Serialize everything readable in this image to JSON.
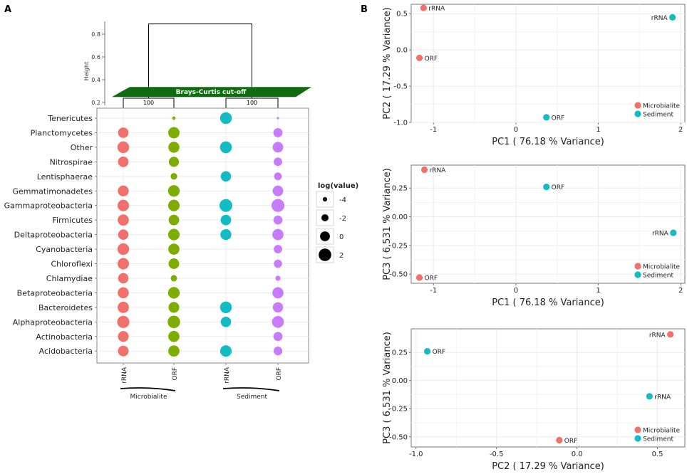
{
  "panel_labels": {
    "a": "A",
    "b": "B"
  },
  "colors": {
    "microbialite": "#F0716C",
    "rRNA_sample": "#F0716C",
    "orf_microbialite": "#7CAE00",
    "rrna_sediment": "#13BBC4",
    "orf_sediment": "#C77CFF",
    "pca_microbialite": "#F0716C",
    "pca_sediment": "#13BBC4",
    "cutoff_band": "#0E6B0E",
    "grid": "#ebebeb"
  },
  "chart_data": [
    {
      "type": "scatter",
      "subtype": "bubble-dotplot-with-dendrogram",
      "title": "",
      "dendrogram": {
        "ylabel": "Height",
        "ticks": [
          0.2,
          0.4,
          0.6,
          0.8
        ],
        "ylim": [
          0.2,
          0.9
        ],
        "merge_height": 0.89,
        "cluster_heights": [
          0.2,
          0.2
        ],
        "cluster_labels": [
          "100",
          "100"
        ],
        "cutoff_label": "Brays-Curtis cut-off",
        "cutoff_height": 0.33
      },
      "columns": [
        "rRNA",
        "ORF",
        "rRNA",
        "ORF"
      ],
      "column_groups": [
        "Microbialite",
        "Sediment"
      ],
      "categories": [
        "Tenericutes",
        "Planctomycetes",
        "Other",
        "Nitrospirae",
        "Lentisphaerae",
        "Gemmatimonadetes",
        "Gammaproteobacteria",
        "Firmicutes",
        "Deltaproteobacteria",
        "Cyanobacteria",
        "Chloroflexi",
        "Chlamydiae",
        "Betaproteobacteria",
        "Bacteroidetes",
        "Alphaproteobacteria",
        "Actinobacteria",
        "Acidobacteria"
      ],
      "series": [
        {
          "name": "Microbialite rRNA",
          "values": [
            null,
            0.5,
            1.4,
            0.5,
            null,
            0.8,
            1.2,
            1.0,
            0.4,
            1.3,
            1.2,
            0.4,
            0.9,
            1.1,
            1.8,
            0.7,
            0.6
          ]
        },
        {
          "name": "Microbialite ORF",
          "values": [
            -4.8,
            1.1,
            0.9,
            0.2,
            -2.4,
            1.3,
            1.2,
            0.5,
            1.2,
            1.0,
            0.6,
            -2.6,
            1.3,
            0.7,
            2.0,
            1.0,
            1.0
          ]
        },
        {
          "name": "Sediment rRNA",
          "values": [
            1.4,
            null,
            1.5,
            null,
            0.4,
            null,
            2.2,
            0.5,
            0.8,
            null,
            null,
            null,
            null,
            1.4,
            0.4,
            null,
            1.2
          ]
        },
        {
          "name": "Sediment ORF",
          "values": [
            -5.5,
            -0.5,
            0.6,
            -1.0,
            -1.5,
            0.6,
            2.3,
            -0.6,
            1.0,
            -1.0,
            -1.2,
            -3.5,
            1.0,
            0.4,
            1.5,
            -0.5,
            -0.8
          ]
        }
      ],
      "legend": {
        "title": "log(value)",
        "entries": [
          -4,
          -2,
          0,
          2
        ],
        "position": "right"
      }
    },
    {
      "type": "scatter",
      "xlabel": "PC1 ( 76.18  % Variance)",
      "ylabel": "PC2 ( 17.29  % Variance)",
      "xlim": [
        -1.27,
        2.05
      ],
      "ylim": [
        -1.0,
        0.63
      ],
      "xticks": [
        -1,
        0,
        1,
        2
      ],
      "yticks": [
        0.5,
        0.0,
        -0.5,
        -1.0
      ],
      "ytick_labels": [
        "0.5",
        "0.0",
        "-0.5",
        "-1.0"
      ],
      "points": [
        {
          "label": "rRNA",
          "x": -1.12,
          "y": 0.58,
          "group": "Microbialite"
        },
        {
          "label": "ORF",
          "x": -1.17,
          "y": -0.11,
          "group": "Microbialite"
        },
        {
          "label": "rRNA",
          "x": 1.9,
          "y": 0.45,
          "group": "Sediment"
        },
        {
          "label": "ORF",
          "x": 0.37,
          "y": -0.93,
          "group": "Sediment"
        }
      ],
      "legend": {
        "entries": [
          "Microbialite",
          "Sediment"
        ],
        "position": "bottom-right"
      }
    },
    {
      "type": "scatter",
      "xlabel": "PC1 ( 76.18  % Variance)",
      "ylabel": "PC3 ( 6.531  % Variance)",
      "xlim": [
        -1.27,
        2.05
      ],
      "ylim": [
        -0.58,
        0.45
      ],
      "xticks": [
        -1,
        0,
        1,
        2
      ],
      "yticks": [
        0.25,
        0.0,
        -0.25,
        -0.5
      ],
      "ytick_labels": [
        "0.25",
        "0.00",
        "-0.25",
        "-0.50"
      ],
      "points": [
        {
          "label": "rRNA",
          "x": -1.11,
          "y": 0.41,
          "group": "Microbialite"
        },
        {
          "label": "ORF",
          "x": -1.17,
          "y": -0.53,
          "group": "Microbialite"
        },
        {
          "label": "rRNA",
          "x": 1.91,
          "y": -0.14,
          "group": "Sediment"
        },
        {
          "label": "ORF",
          "x": 0.37,
          "y": 0.26,
          "group": "Sediment"
        }
      ],
      "legend": {
        "entries": [
          "Microbialite",
          "Sediment"
        ],
        "position": "bottom-right"
      }
    },
    {
      "type": "scatter",
      "xlabel": "PC2 ( 17.29  % Variance)",
      "ylabel": "PC3 ( 6.531  % Variance)",
      "xlim": [
        -1.03,
        0.67
      ],
      "ylim": [
        -0.59,
        0.46
      ],
      "xticks": [
        -1.0,
        -0.5,
        0.0,
        0.5
      ],
      "xtick_labels": [
        "-1.0",
        "-0.5",
        "0.0",
        "0.5"
      ],
      "yticks": [
        0.25,
        0.0,
        -0.25,
        -0.5
      ],
      "ytick_labels": [
        "0.25",
        "0.00",
        "-0.25",
        "-0.50"
      ],
      "points": [
        {
          "label": "rRNA",
          "x": 0.58,
          "y": 0.41,
          "group": "Microbialite"
        },
        {
          "label": "ORF",
          "x": -0.11,
          "y": -0.53,
          "group": "Microbialite"
        },
        {
          "label": "rRNA",
          "x": 0.45,
          "y": -0.14,
          "group": "Sediment"
        },
        {
          "label": "ORF",
          "x": -0.93,
          "y": 0.26,
          "group": "Sediment"
        }
      ],
      "legend": {
        "entries": [
          "Microbialite",
          "Sediment"
        ],
        "position": "bottom-right"
      }
    }
  ]
}
